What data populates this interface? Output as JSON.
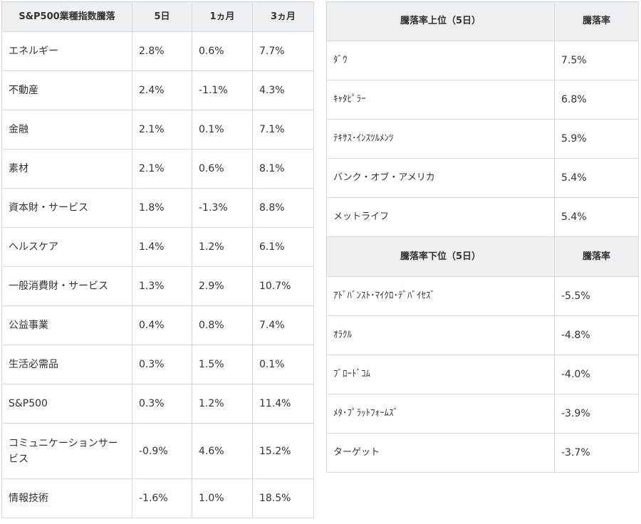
{
  "sector_table": {
    "headers": [
      "S&P500業種指数騰落",
      "5日",
      "1ヵ月",
      "3ヵ月"
    ],
    "rows": [
      {
        "name": "エネルギー",
        "d5": "2.8%",
        "m1": "0.6%",
        "m3": "7.7%"
      },
      {
        "name": "不動産",
        "d5": "2.4%",
        "m1": "-1.1%",
        "m3": "4.3%"
      },
      {
        "name": "金融",
        "d5": "2.1%",
        "m1": "0.1%",
        "m3": "7.1%"
      },
      {
        "name": "素材",
        "d5": "2.1%",
        "m1": "0.6%",
        "m3": "8.1%"
      },
      {
        "name": "資本財・サービス",
        "d5": "1.8%",
        "m1": "-1.3%",
        "m3": "8.8%"
      },
      {
        "name": "ヘルスケア",
        "d5": "1.4%",
        "m1": "1.2%",
        "m3": "6.1%"
      },
      {
        "name": "一般消費財・サービス",
        "d5": "1.3%",
        "m1": "2.9%",
        "m3": "10.7%"
      },
      {
        "name": "公益事業",
        "d5": "0.4%",
        "m1": "0.8%",
        "m3": "7.4%"
      },
      {
        "name": "生活必需品",
        "d5": "0.3%",
        "m1": "1.5%",
        "m3": "0.1%"
      },
      {
        "name": "S&P500",
        "d5": "0.3%",
        "m1": "1.2%",
        "m3": "11.4%"
      },
      {
        "name": "コミュニケーションサービス",
        "d5": "-0.9%",
        "m1": "4.6%",
        "m3": "15.2%"
      },
      {
        "name": "情報技術",
        "d5": "-1.6%",
        "m1": "1.0%",
        "m3": "18.5%"
      }
    ]
  },
  "top_movers": {
    "headers": [
      "騰落率上位（5日）",
      "騰落率"
    ],
    "rows": [
      {
        "name": "ﾀﾞｳ",
        "value": "7.5%"
      },
      {
        "name": "ｷｬﾀﾋﾟﾗｰ",
        "value": "6.8%"
      },
      {
        "name": "ﾃｷｻｽ･ｲﾝｽﾂﾙﾒﾝﾂ",
        "value": "5.9%"
      },
      {
        "name": "バンク・オブ・アメリカ",
        "value": "5.4%"
      },
      {
        "name": "メットライフ",
        "value": "5.4%"
      }
    ]
  },
  "bottom_movers": {
    "headers": [
      "騰落率下位（5日）",
      "騰落率"
    ],
    "rows": [
      {
        "name": "ｱﾄﾞﾊﾞﾝｽﾄ･ﾏｲｸﾛ･ﾃﾞﾊﾞｲｾｽﾞ",
        "value": "-5.5%"
      },
      {
        "name": "ｵﾗｸﾙ",
        "value": "-4.8%"
      },
      {
        "name": "ﾌﾞﾛｰﾄﾞｺﾑ",
        "value": "-4.0%"
      },
      {
        "name": "ﾒﾀ･ﾌﾟﾗｯﾄﾌｫｰﾑｽﾞ",
        "value": "-3.9%"
      },
      {
        "name": "ターゲット",
        "value": "-3.7%"
      }
    ]
  }
}
